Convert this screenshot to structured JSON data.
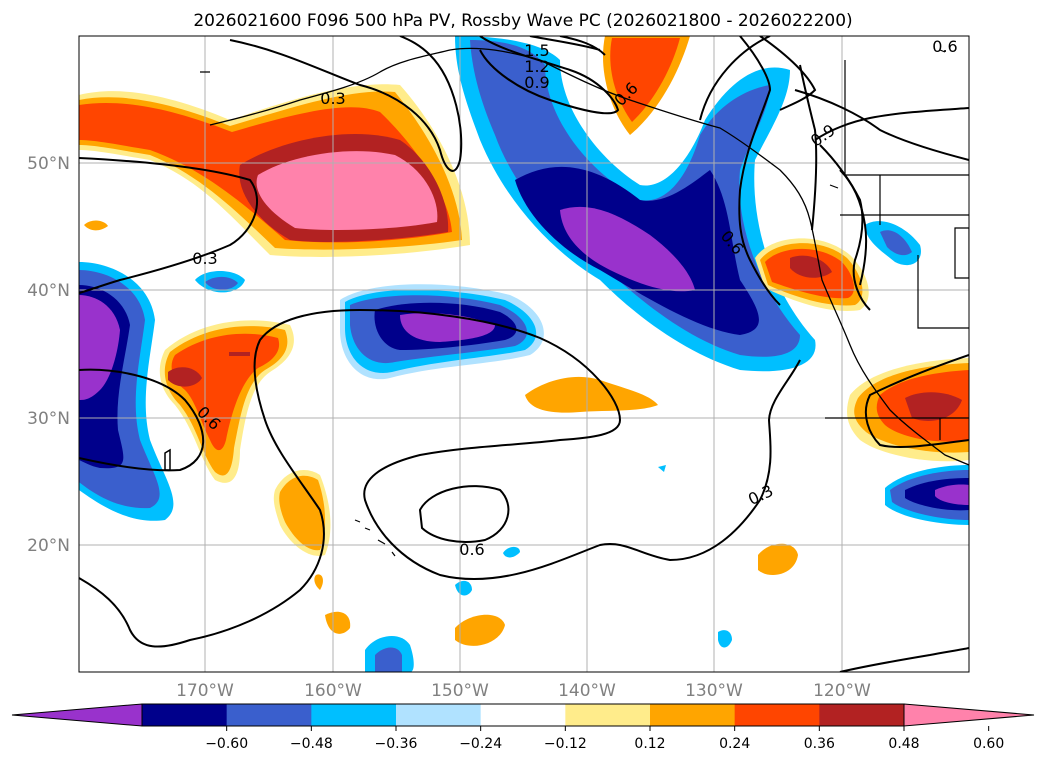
{
  "title": "2026021600 F096 500 hPa PV, Rossby Wave PC (2026021800 - 2026022200)",
  "map": {
    "lon_range": [
      -180,
      -110
    ],
    "lat_range": [
      10,
      60
    ],
    "lat_ticks": [
      "50°N",
      "40°N",
      "30°N",
      "20°N"
    ],
    "lon_ticks": [
      "170°W",
      "160°W",
      "150°W",
      "140°W",
      "130°W",
      "120°W"
    ],
    "grid": true
  },
  "contour_labels": [
    "1.5",
    "1.2",
    "0.9",
    "0.6",
    "0.3",
    "0.3",
    "0.6",
    "0.6",
    "0.9",
    "0.6",
    "0.3",
    "0.6"
  ],
  "colorbar": {
    "colors": [
      "#9932cc",
      "#00008b",
      "#3a5fcd",
      "#00bfff",
      "#b0e2ff",
      "#ffffff",
      "#ffec8b",
      "#ffa500",
      "#ff4500",
      "#b22222",
      "#ff82ab"
    ],
    "labels": [
      "−0.60",
      "−0.48",
      "−0.36",
      "−0.24",
      "−0.12",
      "0.12",
      "0.24",
      "0.36",
      "0.48",
      "0.60"
    ],
    "extend": "both"
  }
}
